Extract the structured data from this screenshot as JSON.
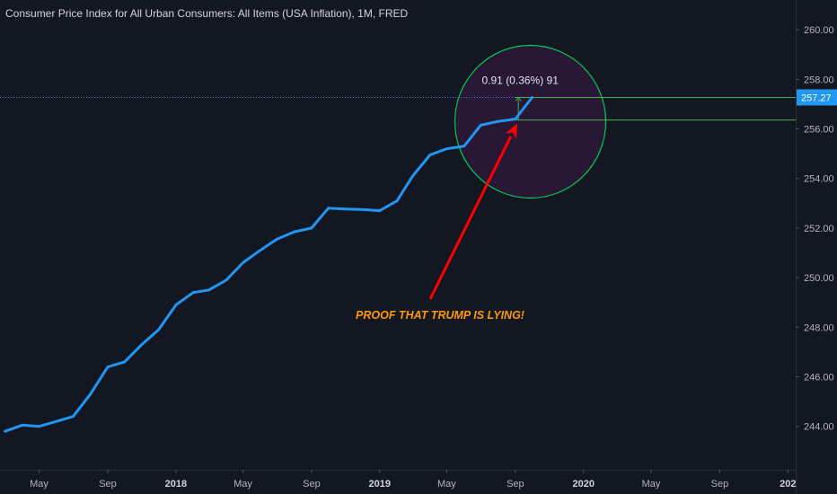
{
  "chart_data": {
    "type": "line",
    "title": "Consumer Price Index for All Urban Consumers: All Items (USA Inflation), 1M, FRED",
    "series": [
      {
        "color": "#2196f3",
        "x": [
          "2017-03",
          "2017-04",
          "2017-05",
          "2017-06",
          "2017-07",
          "2017-08",
          "2017-09",
          "2017-10",
          "2017-11",
          "2017-12",
          "2018-01",
          "2018-02",
          "2018-03",
          "2018-04",
          "2018-05",
          "2018-06",
          "2018-07",
          "2018-08",
          "2018-09",
          "2018-10",
          "2018-11",
          "2018-12",
          "2019-01",
          "2019-02",
          "2019-03",
          "2019-04",
          "2019-05",
          "2019-06",
          "2019-07",
          "2019-08",
          "2019-09",
          "2019-10"
        ],
        "y": [
          243.8,
          244.05,
          244.0,
          244.2,
          244.4,
          245.3,
          246.4,
          246.6,
          247.3,
          247.9,
          248.9,
          249.4,
          249.5,
          249.9,
          250.6,
          251.1,
          251.55,
          251.85,
          252.0,
          252.8,
          252.77,
          252.75,
          252.7,
          253.1,
          254.1,
          254.95,
          255.2,
          255.3,
          256.15,
          256.3,
          256.4,
          257.27
        ]
      }
    ],
    "x_ticks": [
      {
        "label": "May",
        "date": "2017-05",
        "bold": false
      },
      {
        "label": "Sep",
        "date": "2017-09",
        "bold": false
      },
      {
        "label": "2018",
        "date": "2018-01",
        "bold": true
      },
      {
        "label": "May",
        "date": "2018-05",
        "bold": false
      },
      {
        "label": "Sep",
        "date": "2018-09",
        "bold": false
      },
      {
        "label": "2019",
        "date": "2019-01",
        "bold": true
      },
      {
        "label": "May",
        "date": "2019-05",
        "bold": false
      },
      {
        "label": "Sep",
        "date": "2019-09",
        "bold": false
      },
      {
        "label": "2020",
        "date": "2020-01",
        "bold": true
      },
      {
        "label": "May",
        "date": "2020-05",
        "bold": false
      },
      {
        "label": "Sep",
        "date": "2020-09",
        "bold": false
      },
      {
        "label": "202",
        "date": "2021-01",
        "bold": true
      }
    ],
    "x_range": [
      "2017-02-20",
      "2021-01-15"
    ],
    "y_ticks": [
      "244.00",
      "246.00",
      "248.00",
      "250.00",
      "252.00",
      "254.00",
      "256.00",
      "258.00",
      "260.00"
    ],
    "y_range": [
      242.25,
      261.2
    ],
    "last_price": {
      "value": 257.27,
      "label": "257.27"
    },
    "grid": false,
    "measure_tool": {
      "label": "0.91 (0.36%) 91",
      "from_value": 256.36,
      "to_value": 257.27,
      "from_date": "2019-09",
      "to_date": "2019-10"
    },
    "annotation": {
      "text": "PROOF THAT TRUMP IS LYING!",
      "color": "#ff9800",
      "arrow_color": "#ff0000",
      "circle_color": "#00c853",
      "circle_fill": "#2a1738"
    }
  },
  "colors": {
    "background": "#131722",
    "line": "#2196f3",
    "price_tag": "#2196f3",
    "axis_text": "#b2b5be",
    "measure_lines": "#4caf50"
  }
}
